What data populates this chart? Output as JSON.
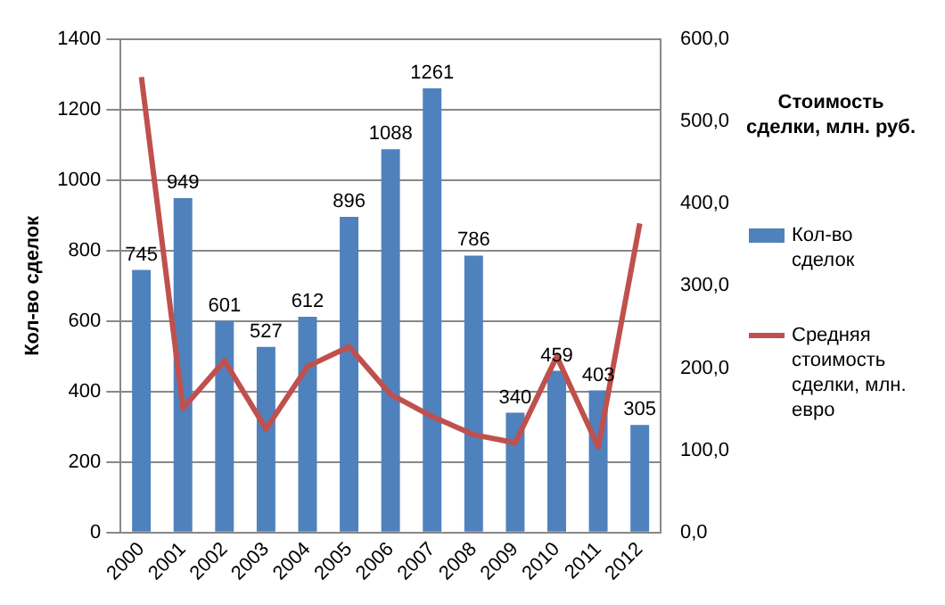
{
  "chart_data": {
    "type": "bar",
    "ylabel": "Кол-во сделок",
    "y2label": "Стоимость сделки, млн. руб.",
    "categories": [
      "2000",
      "2001",
      "2002",
      "2003",
      "2004",
      "2005",
      "2006",
      "2007",
      "2008",
      "2009",
      "2010",
      "2011",
      "2012"
    ],
    "series": [
      {
        "name": "Кол-во сделок",
        "color": "#4f81bd",
        "values": [
          745,
          949,
          601,
          527,
          612,
          896,
          1088,
          1261,
          786,
          340,
          459,
          403,
          305
        ],
        "value_labels": [
          "745",
          "949",
          "601",
          "527",
          "612",
          "896",
          "1088",
          "1261",
          "786",
          "340",
          "459",
          "403",
          "305"
        ]
      },
      {
        "name": "Средняя стоимость сделки, млн. евро",
        "type": "line",
        "axis": "y2",
        "color": "#c0504d",
        "values": [
          554,
          151,
          209,
          126,
          202,
          226,
          168,
          141,
          119,
          109,
          214,
          104,
          376
        ]
      }
    ],
    "ylim": [
      0,
      1400
    ],
    "yticks": [
      0,
      200,
      400,
      600,
      800,
      1000,
      1200,
      1400
    ],
    "y2lim": [
      0,
      600
    ],
    "y2ticks": [
      {
        "value": 0,
        "label": "0,0"
      },
      {
        "value": 100,
        "label": "100,0"
      },
      {
        "value": 200,
        "label": "200,0"
      },
      {
        "value": 300,
        "label": "300,0"
      },
      {
        "value": 400,
        "label": "400,0"
      },
      {
        "value": 500,
        "label": "500,0"
      },
      {
        "value": 600,
        "label": "600,0"
      }
    ],
    "grid": "y",
    "legend": "right",
    "marker": "none",
    "line_style": "solid"
  }
}
